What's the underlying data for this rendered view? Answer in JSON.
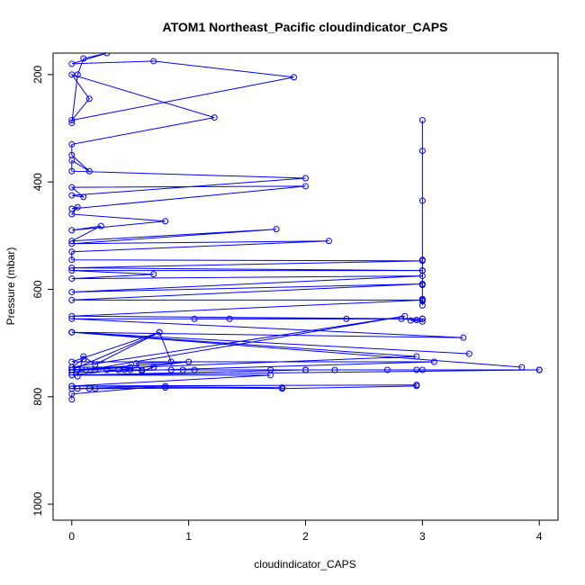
{
  "chart_data": {
    "type": "line",
    "title": "ATOM1 Northeast_Pacific cloudindicator_CAPS",
    "xlabel": "cloudindicator_CAPS",
    "ylabel": "Pressure (mbar)",
    "xlim": [
      0,
      4
    ],
    "ylim": [
      1030,
      160
    ],
    "y_reversed": true,
    "grid": false,
    "legend": "none",
    "marker": "open-circle",
    "color": "#0000ff",
    "x_ticks": [
      0,
      1,
      2,
      3,
      4
    ],
    "y_ticks": [
      200,
      400,
      600,
      800,
      1000
    ],
    "series": [
      {
        "x": [
          0,
          0.05,
          0.1,
          0.3,
          0,
          0.7,
          1.9,
          0,
          0.15,
          0,
          1.22,
          0,
          0,
          0.15,
          0,
          0,
          2.0,
          0,
          0.1,
          0,
          2.0,
          0,
          0.05,
          0,
          0.8,
          0,
          0.25,
          0,
          1.75,
          0,
          2.2,
          0,
          0,
          3.0,
          0,
          3.0,
          0,
          0.7,
          0,
          3.0,
          0,
          3.0,
          0,
          3.0,
          0,
          3.0,
          0,
          3.35,
          0,
          3.4,
          0,
          3.85,
          0,
          2.95,
          0,
          0.75,
          0,
          3.1,
          0,
          2.85,
          0,
          0.1,
          0,
          0.5,
          0,
          1.0,
          0,
          2.0,
          0,
          4.0,
          0,
          1.7,
          0,
          2.95,
          0,
          1.8,
          0,
          0.8,
          0,
          0
        ],
        "y": [
          290,
          200,
          170,
          160,
          180,
          175,
          205,
          285,
          245,
          200,
          280,
          330,
          350,
          380,
          360,
          380,
          393,
          425,
          428,
          410,
          408,
          450,
          447,
          460,
          473,
          490,
          482,
          510,
          488,
          515,
          510,
          530,
          545,
          547,
          560,
          565,
          565,
          572,
          580,
          575,
          605,
          590,
          620,
          620,
          650,
          655,
          655,
          690,
          680,
          720,
          680,
          745,
          680,
          725,
          750,
          680,
          735,
          735,
          755,
          650,
          745,
          730,
          745,
          745,
          750,
          735,
          760,
          750,
          750,
          750,
          760,
          760,
          780,
          778,
          780,
          783,
          785,
          780,
          795,
          805
        ]
      },
      {
        "x": [
          3.0,
          3.0,
          3.0,
          3.0,
          3.0,
          3.0,
          3.0,
          3.0,
          3.0,
          3.0
        ],
        "y": [
          285,
          342,
          435,
          545,
          565,
          590,
          592,
          618,
          622,
          630
        ]
      },
      {
        "x": [
          1.05,
          1.35,
          2.35,
          2.82,
          2.95,
          3.0,
          3.0,
          2.9
        ],
        "y": [
          655,
          655,
          655,
          655,
          657,
          655,
          660,
          658
        ]
      },
      {
        "x": [
          0.05,
          0.12,
          0.2,
          0.3,
          0.4,
          0.45,
          0.5,
          0.6,
          0.85,
          0.95,
          1.05,
          1.7,
          2.0,
          2.25,
          2.7,
          2.95,
          3.0,
          4.0,
          4.0
        ],
        "y": [
          750,
          750,
          750,
          750,
          750,
          750,
          750,
          750,
          750,
          750,
          750,
          750,
          750,
          750,
          750,
          750,
          750,
          750,
          750
        ]
      },
      {
        "x": [
          0.05,
          0.15,
          0.2,
          0.8,
          1.8,
          2.95
        ],
        "y": [
          785,
          785,
          785,
          783,
          785,
          780
        ]
      },
      {
        "x": [
          0.05,
          0.1,
          0.2,
          0.75,
          0.85,
          0.55,
          0.6,
          0.7
        ],
        "y": [
          762,
          725,
          740,
          680,
          735,
          738,
          752,
          745
        ]
      }
    ]
  }
}
